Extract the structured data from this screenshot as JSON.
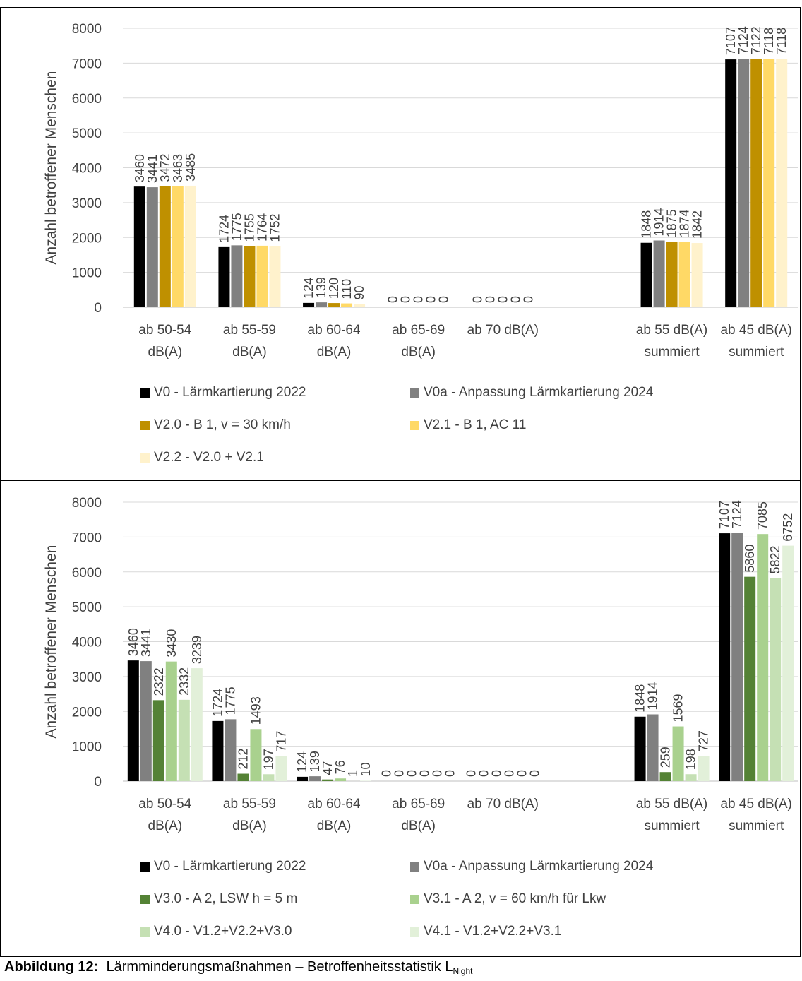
{
  "chart_data": [
    {
      "type": "bar",
      "ylabel": "Anzahl betroffener Menschen",
      "ylim": [
        0,
        8000
      ],
      "yticks": [
        "0",
        "1000",
        "2000",
        "3000",
        "4000",
        "5000",
        "6000",
        "7000",
        "8000"
      ],
      "categories": [
        [
          "ab 50-54",
          "dB(A)"
        ],
        [
          "ab 55-59",
          "dB(A)"
        ],
        [
          "ab 60-64",
          "dB(A)"
        ],
        [
          "ab 65-69",
          "dB(A)"
        ],
        [
          "ab 70 dB(A)",
          ""
        ],
        [
          "",
          ""
        ],
        [
          "ab 55 dB(A)",
          "summiert"
        ],
        [
          "ab 45 dB(A)",
          "summiert"
        ]
      ],
      "grid": true,
      "legend_position": "bottom",
      "series": [
        {
          "name": "V0 - Lärmkartierung 2022",
          "color": "#000000",
          "values": [
            3460,
            1724,
            124,
            0,
            0,
            null,
            1848,
            7107
          ]
        },
        {
          "name": "V0a - Anpassung Lärmkartierung 2024",
          "color": "#808080",
          "values": [
            3441,
            1775,
            139,
            0,
            0,
            null,
            1914,
            7124
          ]
        },
        {
          "name": "V2.0 - B 1, v = 30 km/h",
          "color": "#bf9000",
          "values": [
            3472,
            1755,
            120,
            0,
            0,
            null,
            1875,
            7122
          ]
        },
        {
          "name": "V2.1 - B 1, AC 11",
          "color": "#ffd966",
          "values": [
            3463,
            1764,
            110,
            0,
            0,
            null,
            1874,
            7118
          ]
        },
        {
          "name": "V2.2 - V2.0 + V2.1",
          "color": "#fff2cc",
          "values": [
            3485,
            1752,
            90,
            0,
            0,
            null,
            1842,
            7118
          ]
        }
      ]
    },
    {
      "type": "bar",
      "ylabel": "Anzahl betroffener Menschen",
      "ylim": [
        0,
        8000
      ],
      "yticks": [
        "0",
        "1000",
        "2000",
        "3000",
        "4000",
        "5000",
        "6000",
        "7000",
        "8000"
      ],
      "categories": [
        [
          "ab 50-54",
          "dB(A)"
        ],
        [
          "ab 55-59",
          "dB(A)"
        ],
        [
          "ab 60-64",
          "dB(A)"
        ],
        [
          "ab 65-69",
          "dB(A)"
        ],
        [
          "ab 70 dB(A)",
          ""
        ],
        [
          "",
          ""
        ],
        [
          "ab 55 dB(A)",
          "summiert"
        ],
        [
          "ab 45 dB(A)",
          "summiert"
        ]
      ],
      "grid": true,
      "legend_position": "bottom",
      "series": [
        {
          "name": "V0 - Lärmkartierung 2022",
          "color": "#000000",
          "values": [
            3460,
            1724,
            124,
            0,
            0,
            null,
            1848,
            7107
          ]
        },
        {
          "name": "V0a - Anpassung Lärmkartierung 2024",
          "color": "#808080",
          "values": [
            3441,
            1775,
            139,
            0,
            0,
            null,
            1914,
            7124
          ]
        },
        {
          "name": "V3.0 - A 2, LSW h = 5 m",
          "color": "#548235",
          "values": [
            2322,
            212,
            47,
            0,
            0,
            null,
            259,
            5860
          ]
        },
        {
          "name": "V3.1 - A 2, v = 60 km/h für Lkw",
          "color": "#a9d18e",
          "values": [
            3430,
            1493,
            76,
            0,
            0,
            null,
            1569,
            7085
          ]
        },
        {
          "name": "V4.0 - V1.2+V2.2+V3.0",
          "color": "#c5e0b4",
          "values": [
            2332,
            197,
            1,
            0,
            0,
            null,
            198,
            5822
          ]
        },
        {
          "name": "V4.1 - V1.2+V2.2+V3.1",
          "color": "#e2f0d9",
          "values": [
            3239,
            717,
            10,
            0,
            0,
            null,
            727,
            6752
          ]
        }
      ]
    }
  ],
  "caption": {
    "label": "Abbildung 12:",
    "text": "Lärmminderungsmaßnahmen – Betroffenheitsstatistik L",
    "subscript": "Night"
  }
}
